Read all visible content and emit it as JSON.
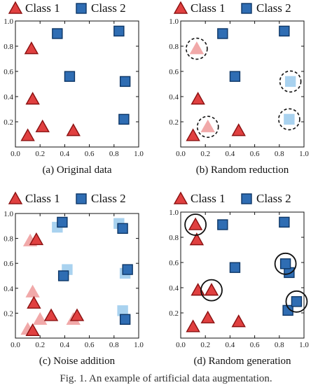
{
  "legend": {
    "class1": "Class 1",
    "class2": "Class 2"
  },
  "colors": {
    "c1": "#e04040",
    "c1_stroke": "#8a1010",
    "c2": "#2f6db3",
    "c2_stroke": "#0d3666",
    "c1_faded": "#f1a9a9",
    "c2_faded": "#a9d2ef"
  },
  "figure_caption": "Fig. 1. An example of artificial data augmentation.",
  "chart_data": [
    {
      "type": "scatter",
      "caption": "(a) Original data",
      "xlim": [
        0,
        1
      ],
      "ylim": [
        0,
        1
      ],
      "xticks": [
        "0.0",
        "0.2",
        "0.4",
        "0.6",
        "0.8",
        "1.0"
      ],
      "yticks": [
        "0.2",
        "0.4",
        "0.6",
        "0.8",
        "1.0"
      ],
      "series": [
        {
          "name": "Class 1",
          "marker": "triangle",
          "points": [
            [
              0.1,
              0.09
            ],
            [
              0.22,
              0.16
            ],
            [
              0.47,
              0.13
            ],
            [
              0.14,
              0.38
            ],
            [
              0.13,
              0.78
            ]
          ]
        },
        {
          "name": "Class 2",
          "marker": "square",
          "points": [
            [
              0.34,
              0.9
            ],
            [
              0.84,
              0.92
            ],
            [
              0.44,
              0.56
            ],
            [
              0.89,
              0.52
            ],
            [
              0.88,
              0.22
            ]
          ]
        }
      ]
    },
    {
      "type": "scatter",
      "caption": "(b) Random reduction",
      "xlim": [
        0,
        1
      ],
      "ylim": [
        0,
        1
      ],
      "xticks": [
        "0.0",
        "0.2",
        "0.4",
        "0.6",
        "0.8",
        "1.0"
      ],
      "yticks": [
        "0.2",
        "0.4",
        "0.6",
        "0.8",
        "1.0"
      ],
      "series": [
        {
          "name": "Class 1",
          "marker": "triangle",
          "points": [
            [
              0.1,
              0.09
            ],
            [
              0.47,
              0.13
            ],
            [
              0.14,
              0.38
            ]
          ]
        },
        {
          "name": "Class 2",
          "marker": "square",
          "points": [
            [
              0.34,
              0.9
            ],
            [
              0.84,
              0.92
            ],
            [
              0.44,
              0.56
            ]
          ]
        }
      ],
      "removed": [
        {
          "marker": "triangle",
          "x": 0.13,
          "y": 0.78
        },
        {
          "marker": "triangle",
          "x": 0.22,
          "y": 0.16
        },
        {
          "marker": "square",
          "x": 0.89,
          "y": 0.52
        },
        {
          "marker": "square",
          "x": 0.88,
          "y": 0.22
        }
      ]
    },
    {
      "type": "scatter",
      "caption": "(c) Noise addition",
      "xlim": [
        0,
        1
      ],
      "ylim": [
        0,
        1
      ],
      "xticks": [
        "0.0",
        "0.2",
        "0.4",
        "0.6",
        "0.8",
        "1.0"
      ],
      "yticks": [
        "0.2",
        "0.4",
        "0.6",
        "0.8",
        "1.0"
      ],
      "series": [
        {
          "name": "Class 1",
          "marker": "triangle",
          "points": [
            [
              0.14,
              0.06
            ],
            [
              0.29,
              0.18
            ],
            [
              0.5,
              0.18
            ],
            [
              0.15,
              0.28
            ],
            [
              0.17,
              0.79
            ]
          ]
        },
        {
          "name": "Class 2",
          "marker": "square",
          "points": [
            [
              0.38,
              0.93
            ],
            [
              0.87,
              0.88
            ],
            [
              0.39,
              0.5
            ],
            [
              0.91,
              0.55
            ],
            [
              0.89,
              0.15
            ]
          ]
        }
      ],
      "original": [
        {
          "marker": "triangle",
          "x": 0.1,
          "y": 0.07
        },
        {
          "marker": "triangle",
          "x": 0.2,
          "y": 0.15
        },
        {
          "marker": "triangle",
          "x": 0.47,
          "y": 0.15
        },
        {
          "marker": "triangle",
          "x": 0.14,
          "y": 0.37
        },
        {
          "marker": "triangle",
          "x": 0.12,
          "y": 0.78
        },
        {
          "marker": "square",
          "x": 0.34,
          "y": 0.89
        },
        {
          "marker": "square",
          "x": 0.84,
          "y": 0.92
        },
        {
          "marker": "square",
          "x": 0.42,
          "y": 0.55
        },
        {
          "marker": "square",
          "x": 0.89,
          "y": 0.52
        },
        {
          "marker": "square",
          "x": 0.87,
          "y": 0.22
        }
      ]
    },
    {
      "type": "scatter",
      "caption": "(d) Random generation",
      "xlim": [
        0,
        1
      ],
      "ylim": [
        0,
        1
      ],
      "xticks": [
        "0.0",
        "0.2",
        "0.4",
        "0.6",
        "0.8",
        "1.0"
      ],
      "yticks": [
        "0.2",
        "0.4",
        "0.6",
        "0.8",
        "1.0"
      ],
      "series": [
        {
          "name": "Class 1",
          "marker": "triangle",
          "points": [
            [
              0.1,
              0.09
            ],
            [
              0.22,
              0.16
            ],
            [
              0.47,
              0.13
            ],
            [
              0.14,
              0.38
            ],
            [
              0.13,
              0.78
            ]
          ]
        },
        {
          "name": "Class 2",
          "marker": "square",
          "points": [
            [
              0.34,
              0.9
            ],
            [
              0.84,
              0.92
            ],
            [
              0.44,
              0.56
            ],
            [
              0.88,
              0.52
            ],
            [
              0.87,
              0.22
            ]
          ]
        }
      ],
      "generated": [
        {
          "marker": "triangle",
          "x": 0.12,
          "y": 0.9
        },
        {
          "marker": "triangle",
          "x": 0.25,
          "y": 0.38
        },
        {
          "marker": "square",
          "x": 0.85,
          "y": 0.59
        },
        {
          "marker": "square",
          "x": 0.94,
          "y": 0.29
        }
      ]
    }
  ]
}
